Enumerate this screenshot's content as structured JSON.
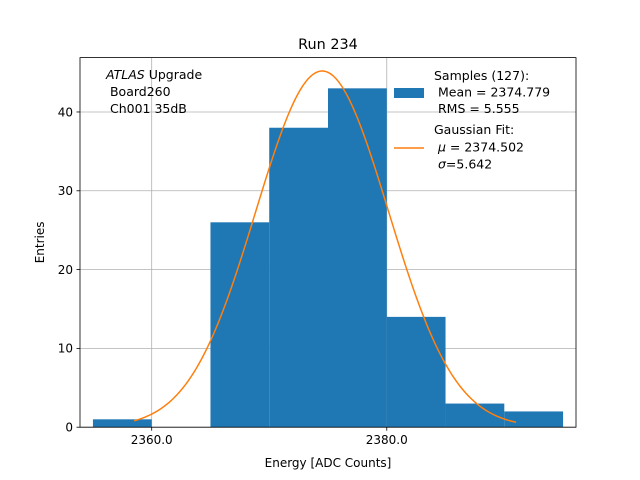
{
  "chart_data": {
    "type": "bar",
    "title": "Run 234",
    "xlabel": "Energy [ADC Counts]",
    "ylabel": "Entries",
    "xlim": [
      2353.9,
      2396.1
    ],
    "ylim": [
      0,
      46.9
    ],
    "grid": true,
    "bins": [
      {
        "x0": 2355,
        "x1": 2360,
        "count": 1
      },
      {
        "x0": 2360,
        "x1": 2365,
        "count": 0
      },
      {
        "x0": 2365,
        "x1": 2370,
        "count": 26
      },
      {
        "x0": 2370,
        "x1": 2375,
        "count": 38
      },
      {
        "x0": 2375,
        "x1": 2380,
        "count": 43
      },
      {
        "x0": 2380,
        "x1": 2385,
        "count": 14
      },
      {
        "x0": 2385,
        "x1": 2390,
        "count": 3
      },
      {
        "x0": 2390,
        "x1": 2395,
        "count": 2
      }
    ],
    "fit": {
      "type": "gaussian",
      "amplitude": 45.2,
      "mu": 2374.502,
      "sigma": 5.642,
      "x_range": [
        2358.5,
        2391
      ]
    },
    "xticks": [
      {
        "value": 2360,
        "label": "2360.0"
      },
      {
        "value": 2380,
        "label": "2380.0"
      }
    ],
    "yticks": [
      {
        "value": 0,
        "label": "0"
      },
      {
        "value": 10,
        "label": "10"
      },
      {
        "value": 20,
        "label": "20"
      },
      {
        "value": 30,
        "label": "30"
      },
      {
        "value": 40,
        "label": "40"
      }
    ],
    "annotation": {
      "atlas": "ATLAS",
      "upgrade": " Upgrade",
      "line2": " Board260",
      "line3": " Ch001 35dB"
    },
    "legend": {
      "position": "top-right",
      "samples": {
        "name": "Samples (127):",
        "mean": " Mean = 2374.779",
        "rms": " RMS = 5.555",
        "color": "#1f77b4"
      },
      "fit": {
        "name": "Gaussian Fit:",
        "mu_text": " = 2374.502",
        "sigma_text": "=5.642",
        "mu_symbol": "μ",
        "sigma_symbol": "σ",
        "color": "#ff7f0e"
      }
    }
  }
}
